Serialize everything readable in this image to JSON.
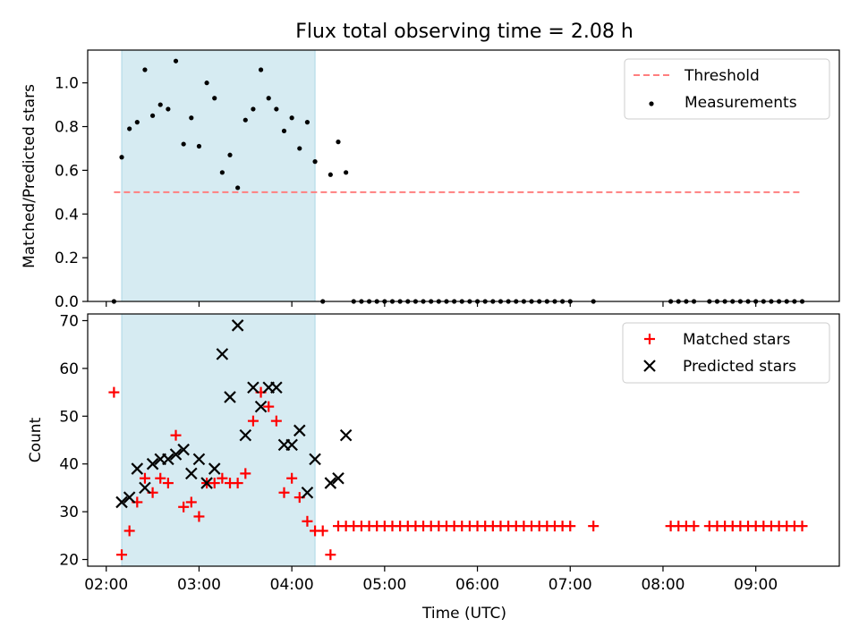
{
  "title": "Flux total observing time = 2.08 h",
  "colors": {
    "threshold": "#ff7f7f",
    "measurement": "#000000",
    "matched": "#ff0000",
    "predicted": "#000000",
    "span": "#add8e6"
  },
  "chart_data": [
    {
      "type": "scatter",
      "ylabel": "Matched/Predicted stars",
      "xlim": [
        "01:48",
        "09:54"
      ],
      "ylim": [
        0,
        1.15
      ],
      "yticks": [
        "0.0",
        "0.2",
        "0.4",
        "0.6",
        "0.8",
        "1.0"
      ],
      "shaded_span": [
        "02:10",
        "04:15"
      ],
      "legend": {
        "position": "top-right",
        "entries": [
          "Threshold",
          "Measurements"
        ]
      },
      "threshold": {
        "name": "Threshold",
        "value": 0.5,
        "x": [
          "02:05",
          "09:30"
        ]
      },
      "measurements": {
        "name": "Measurements",
        "points": [
          [
            "02:05",
            0.0
          ],
          [
            "02:10",
            0.66
          ],
          [
            "02:15",
            0.79
          ],
          [
            "02:20",
            0.82
          ],
          [
            "02:25",
            1.06
          ],
          [
            "02:30",
            0.85
          ],
          [
            "02:35",
            0.9
          ],
          [
            "02:40",
            0.88
          ],
          [
            "02:45",
            1.1
          ],
          [
            "02:50",
            0.72
          ],
          [
            "02:55",
            0.84
          ],
          [
            "03:00",
            0.71
          ],
          [
            "03:05",
            1.0
          ],
          [
            "03:10",
            0.93
          ],
          [
            "03:15",
            0.59
          ],
          [
            "03:20",
            0.67
          ],
          [
            "03:25",
            0.52
          ],
          [
            "03:30",
            0.83
          ],
          [
            "03:35",
            0.88
          ],
          [
            "03:40",
            1.06
          ],
          [
            "03:45",
            0.93
          ],
          [
            "03:50",
            0.88
          ],
          [
            "03:55",
            0.78
          ],
          [
            "04:00",
            0.84
          ],
          [
            "04:05",
            0.7
          ],
          [
            "04:10",
            0.82
          ],
          [
            "04:15",
            0.64
          ],
          [
            "04:20",
            0.0
          ],
          [
            "04:25",
            0.58
          ],
          [
            "04:30",
            0.73
          ],
          [
            "04:35",
            0.59
          ],
          [
            "04:40",
            0.0
          ],
          [
            "04:45",
            0.0
          ],
          [
            "04:50",
            0.0
          ],
          [
            "04:55",
            0.0
          ],
          [
            "05:00",
            0.0
          ],
          [
            "05:05",
            0.0
          ],
          [
            "05:10",
            0.0
          ],
          [
            "05:15",
            0.0
          ],
          [
            "05:20",
            0.0
          ],
          [
            "05:25",
            0.0
          ],
          [
            "05:30",
            0.0
          ],
          [
            "05:35",
            0.0
          ],
          [
            "05:40",
            0.0
          ],
          [
            "05:45",
            0.0
          ],
          [
            "05:50",
            0.0
          ],
          [
            "05:55",
            0.0
          ],
          [
            "06:00",
            0.0
          ],
          [
            "06:05",
            0.0
          ],
          [
            "06:10",
            0.0
          ],
          [
            "06:15",
            0.0
          ],
          [
            "06:20",
            0.0
          ],
          [
            "06:25",
            0.0
          ],
          [
            "06:30",
            0.0
          ],
          [
            "06:35",
            0.0
          ],
          [
            "06:40",
            0.0
          ],
          [
            "06:45",
            0.0
          ],
          [
            "06:50",
            0.0
          ],
          [
            "06:55",
            0.0
          ],
          [
            "07:00",
            0.0
          ],
          [
            "07:15",
            0.0
          ],
          [
            "08:05",
            0.0
          ],
          [
            "08:10",
            0.0
          ],
          [
            "08:15",
            0.0
          ],
          [
            "08:20",
            0.0
          ],
          [
            "08:30",
            0.0
          ],
          [
            "08:35",
            0.0
          ],
          [
            "08:40",
            0.0
          ],
          [
            "08:45",
            0.0
          ],
          [
            "08:50",
            0.0
          ],
          [
            "08:55",
            0.0
          ],
          [
            "09:00",
            0.0
          ],
          [
            "09:05",
            0.0
          ],
          [
            "09:10",
            0.0
          ],
          [
            "09:15",
            0.0
          ],
          [
            "09:20",
            0.0
          ],
          [
            "09:25",
            0.0
          ],
          [
            "09:30",
            0.0
          ]
        ]
      }
    },
    {
      "type": "scatter",
      "xlabel": "Time (UTC)",
      "ylabel": "Count",
      "xlim": [
        "01:48",
        "09:54"
      ],
      "ylim": [
        18.6,
        71.4
      ],
      "yticks": [
        "20",
        "30",
        "40",
        "50",
        "60",
        "70"
      ],
      "xticks": [
        "02:00",
        "03:00",
        "04:00",
        "05:00",
        "06:00",
        "07:00",
        "08:00",
        "09:00"
      ],
      "shaded_span": [
        "02:10",
        "04:15"
      ],
      "legend": {
        "position": "top-right",
        "entries": [
          "Matched stars",
          "Predicted stars"
        ]
      },
      "matched": {
        "name": "Matched stars",
        "points": [
          [
            "02:05",
            55
          ],
          [
            "02:10",
            21
          ],
          [
            "02:15",
            26
          ],
          [
            "02:20",
            32
          ],
          [
            "02:25",
            37
          ],
          [
            "02:30",
            34
          ],
          [
            "02:35",
            37
          ],
          [
            "02:40",
            36
          ],
          [
            "02:45",
            46
          ],
          [
            "02:50",
            31
          ],
          [
            "02:55",
            32
          ],
          [
            "03:00",
            29
          ],
          [
            "03:05",
            36
          ],
          [
            "03:10",
            36
          ],
          [
            "03:15",
            37
          ],
          [
            "03:20",
            36
          ],
          [
            "03:25",
            36
          ],
          [
            "03:30",
            38
          ],
          [
            "03:35",
            49
          ],
          [
            "03:40",
            55
          ],
          [
            "03:45",
            52
          ],
          [
            "03:50",
            49
          ],
          [
            "03:55",
            34
          ],
          [
            "04:00",
            37
          ],
          [
            "04:05",
            33
          ],
          [
            "04:10",
            28
          ],
          [
            "04:15",
            26
          ],
          [
            "04:20",
            26
          ],
          [
            "04:25",
            21
          ],
          [
            "04:30",
            27
          ],
          [
            "04:35",
            27
          ],
          [
            "04:40",
            27
          ],
          [
            "04:45",
            27
          ],
          [
            "04:50",
            27
          ],
          [
            "04:55",
            27
          ],
          [
            "05:00",
            27
          ],
          [
            "05:05",
            27
          ],
          [
            "05:10",
            27
          ],
          [
            "05:15",
            27
          ],
          [
            "05:20",
            27
          ],
          [
            "05:25",
            27
          ],
          [
            "05:30",
            27
          ],
          [
            "05:35",
            27
          ],
          [
            "05:40",
            27
          ],
          [
            "05:45",
            27
          ],
          [
            "05:50",
            27
          ],
          [
            "05:55",
            27
          ],
          [
            "06:00",
            27
          ],
          [
            "06:05",
            27
          ],
          [
            "06:10",
            27
          ],
          [
            "06:15",
            27
          ],
          [
            "06:20",
            27
          ],
          [
            "06:25",
            27
          ],
          [
            "06:30",
            27
          ],
          [
            "06:35",
            27
          ],
          [
            "06:40",
            27
          ],
          [
            "06:45",
            27
          ],
          [
            "06:50",
            27
          ],
          [
            "06:55",
            27
          ],
          [
            "07:00",
            27
          ],
          [
            "07:15",
            27
          ],
          [
            "08:05",
            27
          ],
          [
            "08:10",
            27
          ],
          [
            "08:15",
            27
          ],
          [
            "08:20",
            27
          ],
          [
            "08:30",
            27
          ],
          [
            "08:35",
            27
          ],
          [
            "08:40",
            27
          ],
          [
            "08:45",
            27
          ],
          [
            "08:50",
            27
          ],
          [
            "08:55",
            27
          ],
          [
            "09:00",
            27
          ],
          [
            "09:05",
            27
          ],
          [
            "09:10",
            27
          ],
          [
            "09:15",
            27
          ],
          [
            "09:20",
            27
          ],
          [
            "09:25",
            27
          ],
          [
            "09:30",
            27
          ]
        ]
      },
      "predicted": {
        "name": "Predicted stars",
        "points": [
          [
            "02:10",
            32
          ],
          [
            "02:15",
            33
          ],
          [
            "02:20",
            39
          ],
          [
            "02:25",
            35
          ],
          [
            "02:30",
            40
          ],
          [
            "02:35",
            41
          ],
          [
            "02:40",
            41
          ],
          [
            "02:45",
            42
          ],
          [
            "02:50",
            43
          ],
          [
            "02:55",
            38
          ],
          [
            "03:00",
            41
          ],
          [
            "03:05",
            36
          ],
          [
            "03:10",
            39
          ],
          [
            "03:15",
            63
          ],
          [
            "03:20",
            54
          ],
          [
            "03:25",
            69
          ],
          [
            "03:30",
            46
          ],
          [
            "03:35",
            56
          ],
          [
            "03:40",
            52
          ],
          [
            "03:45",
            56
          ],
          [
            "03:50",
            56
          ],
          [
            "03:55",
            44
          ],
          [
            "04:00",
            44
          ],
          [
            "04:05",
            47
          ],
          [
            "04:10",
            34
          ],
          [
            "04:15",
            41
          ],
          [
            "04:25",
            36
          ],
          [
            "04:30",
            37
          ],
          [
            "04:35",
            46
          ]
        ]
      }
    }
  ]
}
